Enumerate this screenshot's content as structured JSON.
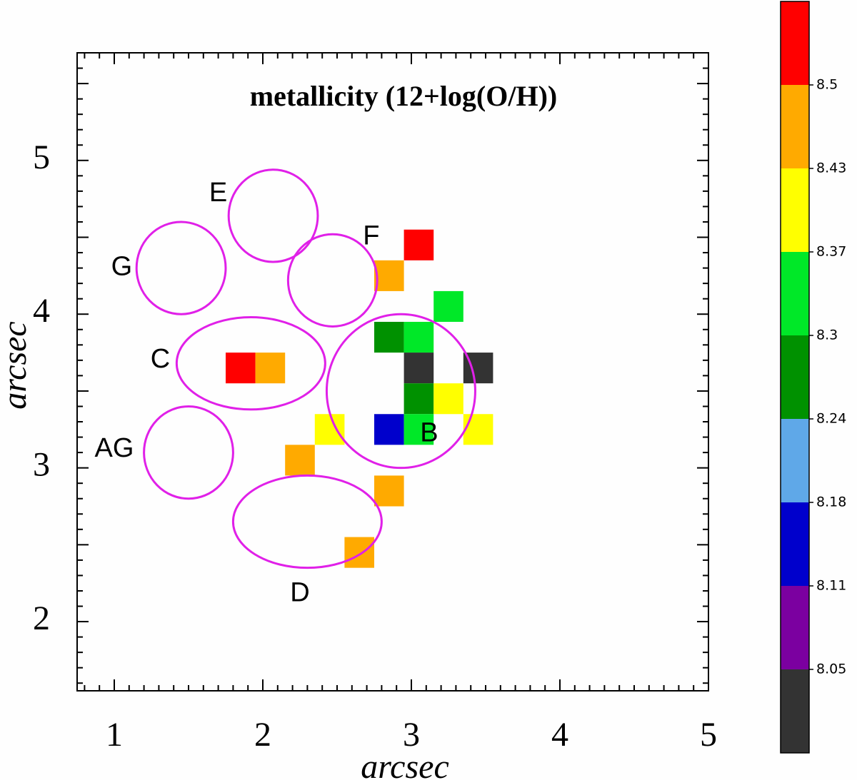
{
  "chart_data": {
    "type": "heatmap",
    "title": "metallicity (12+log(O/H))",
    "xlabel": "arcsec",
    "ylabel": "arcsec",
    "xlim": [
      0.75,
      5.0
    ],
    "ylim": [
      1.55,
      5.7
    ],
    "x_ticks": [
      1,
      2,
      3,
      4,
      5
    ],
    "y_ticks": [
      2,
      3,
      4,
      5
    ],
    "pixel_size": 0.2,
    "colorbar": {
      "boundaries": [
        8.05,
        8.11,
        8.18,
        8.24,
        8.3,
        8.37,
        8.43,
        8.5
      ],
      "bins": [
        {
          "label": "< 8.05",
          "color": "#333333"
        },
        {
          "label": "8.05–8.11",
          "color": "#7b00a0"
        },
        {
          "label": "8.11–8.18",
          "color": "#0000cc"
        },
        {
          "label": "8.18–8.24",
          "color": "#5fa8e8"
        },
        {
          "label": "8.24–8.30",
          "color": "#009100"
        },
        {
          "label": "8.30–8.37",
          "color": "#00e828"
        },
        {
          "label": "8.37–8.43",
          "color": "#ffff00"
        },
        {
          "label": "8.43–8.50",
          "color": "#ffaa00"
        },
        {
          "label": "> 8.50",
          "color": "#ff0000"
        }
      ]
    },
    "pixels": [
      {
        "x": 3.05,
        "y": 4.45,
        "bin": 8
      },
      {
        "x": 2.85,
        "y": 4.25,
        "bin": 7
      },
      {
        "x": 3.25,
        "y": 4.05,
        "bin": 5
      },
      {
        "x": 2.85,
        "y": 3.85,
        "bin": 4
      },
      {
        "x": 3.05,
        "y": 3.85,
        "bin": 5
      },
      {
        "x": 1.85,
        "y": 3.65,
        "bin": 8
      },
      {
        "x": 2.05,
        "y": 3.65,
        "bin": 7
      },
      {
        "x": 3.05,
        "y": 3.65,
        "bin": 0
      },
      {
        "x": 3.45,
        "y": 3.65,
        "bin": 0
      },
      {
        "x": 3.05,
        "y": 3.45,
        "bin": 4
      },
      {
        "x": 3.25,
        "y": 3.45,
        "bin": 6
      },
      {
        "x": 2.45,
        "y": 3.25,
        "bin": 6
      },
      {
        "x": 2.85,
        "y": 3.25,
        "bin": 2
      },
      {
        "x": 3.05,
        "y": 3.25,
        "bin": 5
      },
      {
        "x": 3.45,
        "y": 3.25,
        "bin": 6
      },
      {
        "x": 2.25,
        "y": 3.05,
        "bin": 7
      },
      {
        "x": 2.85,
        "y": 2.85,
        "bin": 7
      },
      {
        "x": 2.65,
        "y": 2.45,
        "bin": 7
      }
    ],
    "regions": [
      {
        "name": "E",
        "cx": 2.07,
        "cy": 4.64,
        "rx": 0.3,
        "ry": 0.3,
        "label_x": 1.7,
        "label_y": 4.78
      },
      {
        "name": "G",
        "cx": 1.45,
        "cy": 4.3,
        "rx": 0.3,
        "ry": 0.3,
        "label_x": 1.05,
        "label_y": 4.3
      },
      {
        "name": "F",
        "cx": 2.47,
        "cy": 4.22,
        "rx": 0.3,
        "ry": 0.3,
        "label_x": 2.73,
        "label_y": 4.5
      },
      {
        "name": "C",
        "cx": 1.92,
        "cy": 3.68,
        "rx": 0.5,
        "ry": 0.3,
        "label_x": 1.31,
        "label_y": 3.7
      },
      {
        "name": "B",
        "cx": 2.93,
        "cy": 3.5,
        "rx": 0.5,
        "ry": 0.5,
        "label_x": 3.12,
        "label_y": 3.22
      },
      {
        "name": "AG",
        "cx": 1.5,
        "cy": 3.1,
        "rx": 0.3,
        "ry": 0.3,
        "label_x": 1.0,
        "label_y": 3.12
      },
      {
        "name": "D",
        "cx": 2.3,
        "cy": 2.65,
        "rx": 0.5,
        "ry": 0.3,
        "label_x": 2.25,
        "label_y": 2.18
      }
    ]
  }
}
